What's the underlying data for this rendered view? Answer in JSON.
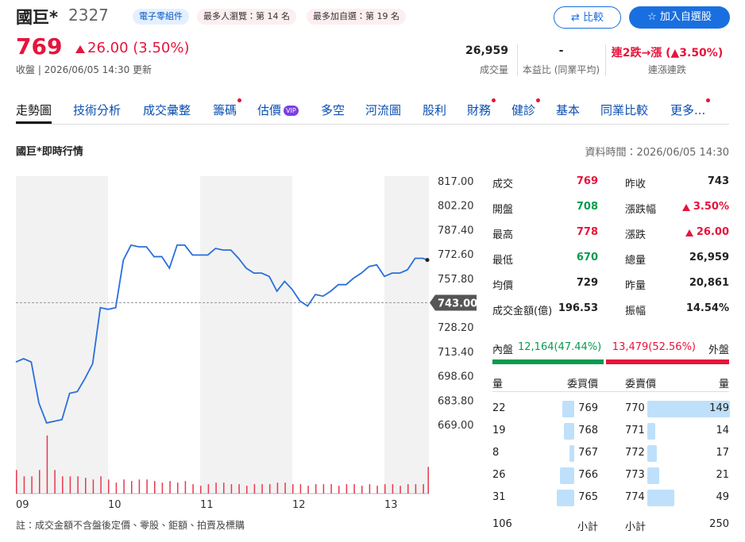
{
  "header": {
    "name": "國巨*",
    "code": "2327",
    "tags": [
      "電子零組件",
      "最多人瀏覽：第 14 名",
      "最多加自選：第 19 名"
    ],
    "buttons": [
      "比較",
      "加入自選股"
    ]
  },
  "quote": {
    "price": "769",
    "change": "26.00",
    "change_pct": "(3.50%)",
    "status": "收盤 | 2026/06/05 14:30 更新",
    "stats": [
      {
        "value": "26,959",
        "label": "成交量"
      },
      {
        "value": "-",
        "label": "本益比 (同業平均)"
      },
      {
        "value": "連2跌→漲 (▲3.50%)",
        "label": "連漲連跌"
      }
    ]
  },
  "tabs": {
    "active": 0,
    "items": [
      {
        "label": "走勢圖"
      },
      {
        "label": "技術分析"
      },
      {
        "label": "成交彙整"
      },
      {
        "label": "籌碼",
        "dot": true
      },
      {
        "label": "估價",
        "badge": "VIP"
      },
      {
        "label": "多空"
      },
      {
        "label": "河流圖"
      },
      {
        "label": "股利"
      },
      {
        "label": "財務",
        "dot": true
      },
      {
        "label": "健診",
        "dot": true
      },
      {
        "label": "基本"
      },
      {
        "label": "同業比較"
      },
      {
        "label": "更多...",
        "dot": true
      }
    ]
  },
  "section": {
    "title": "國巨*即時行情",
    "time": "資料時間：2026/06/05 14:30"
  },
  "chart_data": {
    "type": "line",
    "color": "#2a6fdb",
    "values": [
      707,
      709,
      707,
      682,
      670,
      671,
      672,
      688,
      689,
      697,
      706,
      740,
      739,
      740,
      769,
      778,
      777,
      777,
      771,
      771,
      764,
      778,
      778,
      772,
      772,
      772,
      776,
      775,
      775,
      770,
      764,
      761,
      761,
      759,
      750,
      756,
      751,
      744,
      741,
      748,
      747,
      750,
      754,
      754,
      758,
      761,
      765,
      766,
      759,
      761,
      761,
      763,
      770,
      770,
      769
    ],
    "ylim": [
      669,
      817
    ],
    "yticks": [
      {
        "value": 817,
        "label": "817.00"
      },
      {
        "value": 802.2,
        "label": "802.20"
      },
      {
        "value": 787.4,
        "label": "787.40"
      },
      {
        "value": 772.6,
        "label": "772.60"
      },
      {
        "value": 757.8,
        "label": "757.80"
      },
      {
        "value": 728.2,
        "label": "728.20"
      },
      {
        "value": 713.4,
        "label": "713.40"
      },
      {
        "value": 698.6,
        "label": "698.60"
      },
      {
        "value": 683.8,
        "label": "683.80"
      },
      {
        "value": 669,
        "label": "669.00"
      }
    ],
    "xlim": [
      0,
      54
    ],
    "xticks": [
      {
        "value": 0,
        "label": "09"
      },
      {
        "value": 12,
        "label": "10"
      },
      {
        "value": 24,
        "label": "11"
      },
      {
        "value": 36,
        "label": "12"
      },
      {
        "value": 48,
        "label": "13"
      }
    ],
    "reference": {
      "value": 743,
      "label": "743.00"
    },
    "volume": {
      "color": "#e8384f",
      "ylim": [
        0,
        2200
      ],
      "values": [
        860,
        630,
        630,
        860,
        2120,
        860,
        630,
        630,
        630,
        575,
        515,
        630,
        515,
        400,
        515,
        460,
        515,
        515,
        460,
        400,
        460,
        400,
        460,
        345,
        285,
        345,
        400,
        400,
        345,
        345,
        285,
        345,
        345,
        345,
        400,
        400,
        345,
        345,
        285,
        345,
        345,
        345,
        285,
        345,
        345,
        285,
        345,
        285,
        345,
        345,
        285,
        345,
        345,
        345,
        975
      ]
    }
  },
  "stats": {
    "left": [
      {
        "label": "成交",
        "value": "769",
        "tone": "up"
      },
      {
        "label": "開盤",
        "value": "708",
        "tone": "down"
      },
      {
        "label": "最高",
        "value": "778",
        "tone": "up"
      },
      {
        "label": "最低",
        "value": "670",
        "tone": "down"
      },
      {
        "label": "均價",
        "value": "729"
      },
      {
        "label": "成交金額(億)",
        "value": "196.53"
      }
    ],
    "right": [
      {
        "label": "昨收",
        "value": "743"
      },
      {
        "label": "漲跌幅",
        "value": "3.50%",
        "tone": "up",
        "arrow": true
      },
      {
        "label": "漲跌",
        "value": "26.00",
        "tone": "up",
        "arrow": true
      },
      {
        "label": "總量",
        "value": "26,959"
      },
      {
        "label": "昨量",
        "value": "20,861"
      },
      {
        "label": "振幅",
        "value": "14.54%"
      }
    ]
  },
  "inout": {
    "in_label": "內盤",
    "in": {
      "value": 12164,
      "label": "12,164(47.44%)"
    },
    "out": {
      "value": 13479,
      "label": "13,479(52.56%)"
    },
    "out_label": "外盤"
  },
  "orderbook": {
    "headers": [
      "量",
      "委買價",
      "委賣價",
      "量"
    ],
    "bids": [
      {
        "qty": 22,
        "price": "769"
      },
      {
        "qty": 19,
        "price": "768"
      },
      {
        "qty": 8,
        "price": "767"
      },
      {
        "qty": 26,
        "price": "766"
      },
      {
        "qty": 31,
        "price": "765"
      }
    ],
    "asks": [
      {
        "qty": 149,
        "price": "770"
      },
      {
        "qty": 14,
        "price": "771"
      },
      {
        "qty": 17,
        "price": "772"
      },
      {
        "qty": 21,
        "price": "773"
      },
      {
        "qty": 49,
        "price": "774"
      }
    ],
    "bid_total": 106,
    "ask_total": 250,
    "subtotal_label": "小計"
  },
  "note": "註：成交金額不含盤後定價、零股、鉅額、拍賣及標購"
}
